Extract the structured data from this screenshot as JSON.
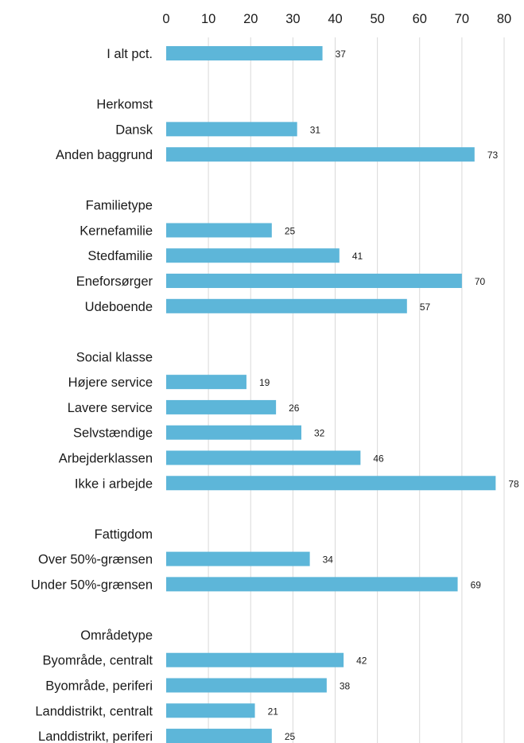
{
  "chart_data": {
    "type": "bar",
    "orientation": "horizontal",
    "xlim": [
      0,
      80
    ],
    "x_ticks": [
      0,
      10,
      20,
      30,
      40,
      50,
      60,
      70,
      80
    ],
    "x_axis_position": "top",
    "grid": true,
    "bar_color": "#5DB6D9",
    "rows": [
      {
        "label": "I alt pct.",
        "value": 37
      },
      {
        "label": "",
        "value": null
      },
      {
        "label": "Herkomst",
        "value": null
      },
      {
        "label": "Dansk",
        "value": 31
      },
      {
        "label": "Anden baggrund",
        "value": 73
      },
      {
        "label": "",
        "value": null
      },
      {
        "label": "Familietype",
        "value": null
      },
      {
        "label": "Kernefamilie",
        "value": 25
      },
      {
        "label": "Stedfamilie",
        "value": 41
      },
      {
        "label": "Eneforsørger",
        "value": 70
      },
      {
        "label": "Udeboende",
        "value": 57
      },
      {
        "label": "",
        "value": null
      },
      {
        "label": "Social klasse",
        "value": null
      },
      {
        "label": "Højere service",
        "value": 19
      },
      {
        "label": "Lavere service",
        "value": 26
      },
      {
        "label": "Selvstændige",
        "value": 32
      },
      {
        "label": "Arbejderklassen",
        "value": 46
      },
      {
        "label": "Ikke i arbejde",
        "value": 78
      },
      {
        "label": "",
        "value": null
      },
      {
        "label": "Fattigdom",
        "value": null
      },
      {
        "label": "Over 50%-grænsen",
        "value": 34
      },
      {
        "label": "Under 50%-grænsen",
        "value": 69
      },
      {
        "label": "",
        "value": null
      },
      {
        "label": "Områdetype",
        "value": null
      },
      {
        "label": "Byområde, centralt",
        "value": 42
      },
      {
        "label": "Byområde, periferi",
        "value": 38
      },
      {
        "label": "Landdistrikt, centralt",
        "value": 21
      },
      {
        "label": "Landdistrikt, periferi",
        "value": 25
      }
    ]
  }
}
